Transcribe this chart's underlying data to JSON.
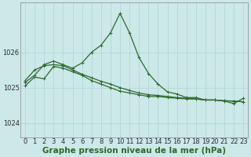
{
  "xlabel": "Graphe pression niveau de la mer (hPa)",
  "background_color": "#cce8e8",
  "plot_bg_color": "#cce8e8",
  "line_color": "#2d6a2d",
  "grid_color": "#aad4d4",
  "x_ticks": [
    0,
    1,
    2,
    3,
    4,
    5,
    6,
    7,
    8,
    9,
    10,
    11,
    12,
    13,
    14,
    15,
    16,
    17,
    18,
    19,
    20,
    21,
    22,
    23
  ],
  "ylim": [
    1023.6,
    1027.4
  ],
  "yticks": [
    1024,
    1025,
    1026
  ],
  "series1": [
    1025.05,
    1025.3,
    1025.25,
    1025.6,
    1025.55,
    1025.45,
    1025.35,
    1025.2,
    1025.1,
    1025.0,
    1024.9,
    1024.85,
    1024.8,
    1024.75,
    1024.75,
    1024.72,
    1024.7,
    1024.68,
    1024.68,
    1024.65,
    1024.65,
    1024.63,
    1024.62,
    1024.6
  ],
  "series2": [
    1025.2,
    1025.5,
    1025.62,
    1025.65,
    1025.62,
    1025.5,
    1025.38,
    1025.28,
    1025.18,
    1025.1,
    1025.0,
    1024.92,
    1024.85,
    1024.8,
    1024.78,
    1024.75,
    1024.72,
    1024.7,
    1024.68,
    1024.65,
    1024.65,
    1024.63,
    1024.62,
    1024.6
  ],
  "series3": [
    1025.15,
    1025.35,
    1025.65,
    1025.75,
    1025.65,
    1025.55,
    1025.7,
    1026.0,
    1026.2,
    1026.55,
    1027.1,
    1026.55,
    1025.85,
    1025.4,
    1025.1,
    1024.88,
    1024.82,
    1024.72,
    1024.72,
    1024.65,
    1024.65,
    1024.62,
    1024.55,
    1024.7
  ],
  "marker": "+",
  "marker_size": 3.5,
  "line_width": 0.9,
  "xlabel_fontsize": 7.5,
  "xlabel_fontweight": "bold",
  "tick_fontsize": 6.0
}
